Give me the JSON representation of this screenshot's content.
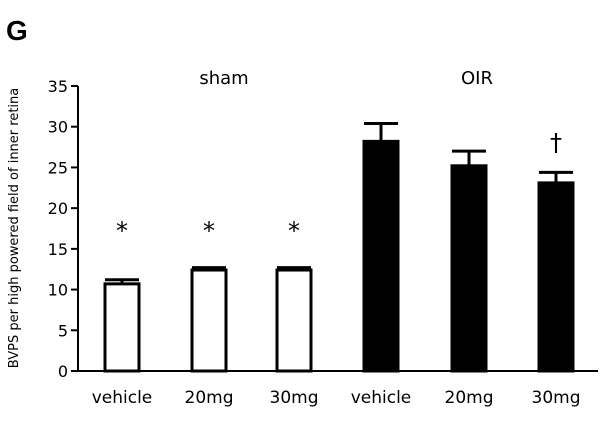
{
  "panel_letter": "G",
  "chart_data": {
    "type": "bar",
    "ylabel": "BVPS per high powered field of inner retina",
    "ylim": [
      0,
      35
    ],
    "yticks": [
      0,
      5,
      10,
      15,
      20,
      25,
      30,
      35
    ],
    "groups": [
      {
        "label": "sham",
        "fill": "#ffffff",
        "categories": [
          "vehicle",
          "20mg",
          "30mg"
        ]
      },
      {
        "label": "OIR",
        "fill": "#000000",
        "categories": [
          "vehicle",
          "20mg",
          "30mg"
        ]
      }
    ],
    "categories": [
      "vehicle",
      "20mg",
      "30mg",
      "vehicle",
      "20mg",
      "30mg"
    ],
    "values": [
      10.7,
      12.4,
      12.4,
      28.2,
      25.2,
      23.1
    ],
    "errors": [
      0.5,
      0.3,
      0.3,
      2.2,
      1.8,
      1.3
    ],
    "annotations": [
      "*",
      "*",
      "*",
      "",
      "",
      "†"
    ],
    "colors": {
      "sham_fill": "#ffffff",
      "oir_fill": "#000000",
      "stroke": "#000000"
    }
  }
}
